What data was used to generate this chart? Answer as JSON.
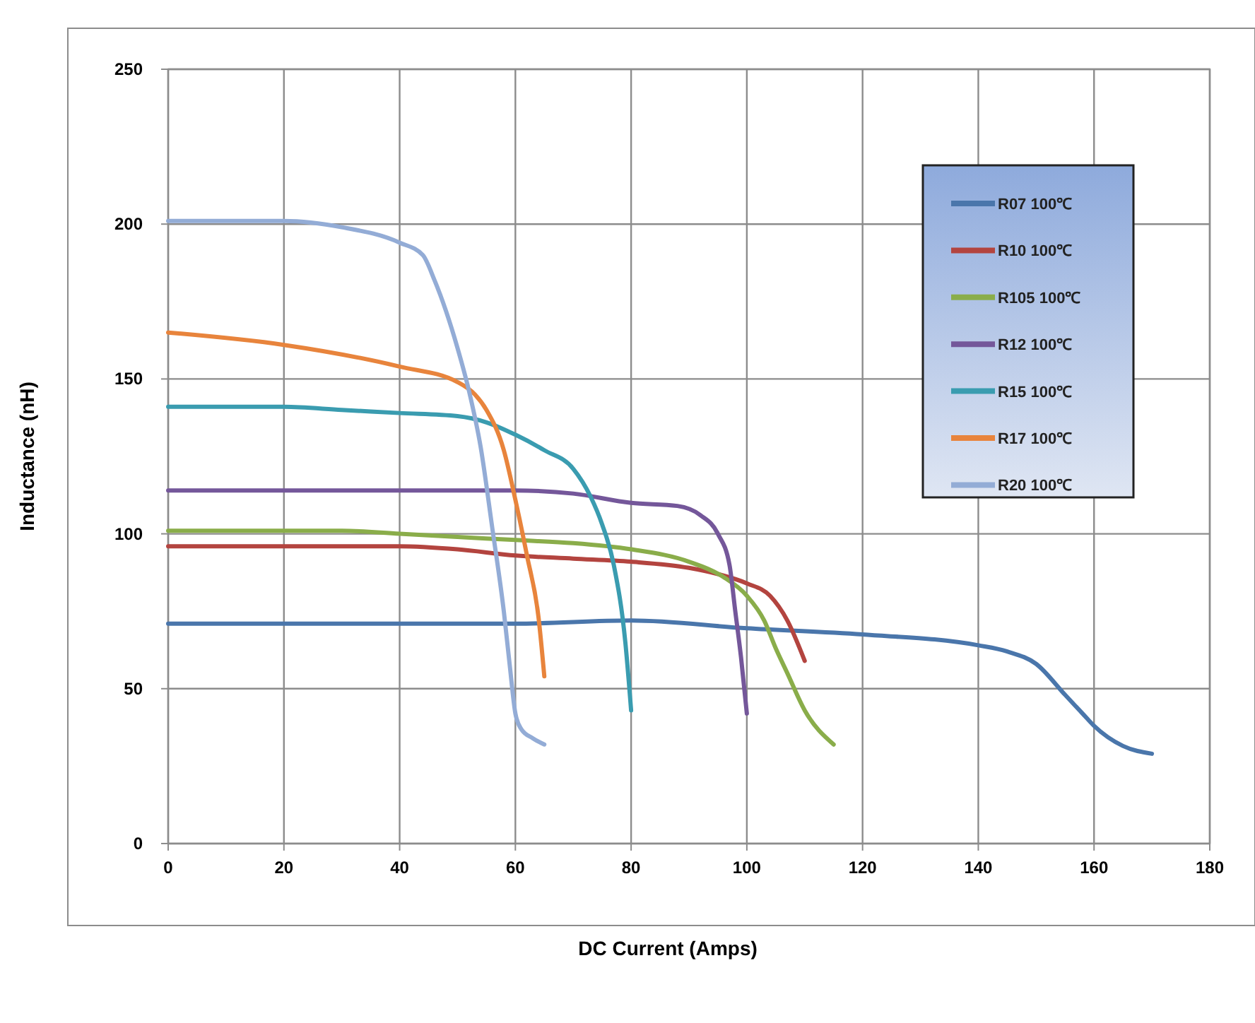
{
  "chart_data": {
    "type": "line",
    "xlabel": "DC Current (Amps)",
    "ylabel": "Inductance (nH)",
    "xlim": [
      0,
      180
    ],
    "xticks": [
      0,
      20,
      40,
      60,
      80,
      100,
      120,
      140,
      160,
      180
    ],
    "ylim": [
      0,
      250
    ],
    "yticks": [
      0,
      50,
      100,
      150,
      200,
      250
    ],
    "grid": true,
    "legend": "top right",
    "marker": "none",
    "line_style": "solid",
    "series": [
      {
        "name": "R07 100℃",
        "color": "#4a76ab",
        "x": [
          0,
          20,
          40,
          60,
          80,
          100,
          120,
          140,
          145,
          150,
          155,
          158,
          160,
          165,
          170
        ],
        "values": [
          71,
          71,
          71,
          71,
          72,
          69.5,
          67.5,
          64,
          62,
          58,
          48,
          42,
          38,
          31.5,
          29
        ]
      },
      {
        "name": "R10 100℃",
        "color": "#b3443f",
        "x": [
          0,
          20,
          40,
          50,
          60,
          70,
          80,
          90,
          95,
          100,
          104,
          107,
          110
        ],
        "values": [
          96,
          96,
          96,
          95,
          93,
          92,
          91,
          89,
          87,
          84,
          80,
          72,
          59
        ]
      },
      {
        "name": "R105 100℃",
        "color": "#8aad4a",
        "x": [
          0,
          20,
          30,
          40,
          50,
          60,
          70,
          80,
          90,
          96,
          100,
          103,
          105,
          107,
          110,
          115
        ],
        "values": [
          101,
          101,
          101,
          100,
          99,
          98,
          97,
          95,
          91,
          86,
          80,
          72,
          63,
          55,
          43,
          32
        ]
      },
      {
        "name": "R12 100℃",
        "color": "#74579a",
        "x": [
          0,
          20,
          40,
          50,
          60,
          70,
          80,
          88,
          92,
          95,
          97,
          98,
          99,
          100
        ],
        "values": [
          114,
          114,
          114,
          114,
          114,
          113,
          110,
          109,
          106,
          100,
          90,
          75,
          60,
          42
        ]
      },
      {
        "name": "R15 100℃",
        "color": "#3a9cb0",
        "x": [
          0,
          20,
          30,
          40,
          50,
          55,
          60,
          65,
          70,
          73,
          75,
          77,
          79,
          80
        ],
        "values": [
          141,
          141,
          140,
          139,
          138,
          136,
          132,
          127,
          121,
          112,
          103,
          90,
          65,
          43
        ]
      },
      {
        "name": "R17 100℃",
        "color": "#e8843c",
        "x": [
          0,
          20,
          40,
          50,
          53,
          55,
          58,
          60,
          62,
          64,
          65
        ],
        "values": [
          165,
          161,
          154,
          149,
          145,
          140,
          127,
          111,
          93,
          73,
          54
        ]
      },
      {
        "name": "R20 100℃",
        "color": "#93acd6",
        "x": [
          0,
          20,
          30,
          40,
          44,
          46,
          48,
          50,
          52,
          54,
          56,
          58,
          59,
          60,
          61,
          63,
          65
        ],
        "values": [
          201,
          201,
          199,
          194,
          190,
          182,
          172,
          160,
          146,
          128,
          102,
          75,
          58,
          42,
          37,
          34,
          32
        ]
      }
    ]
  }
}
